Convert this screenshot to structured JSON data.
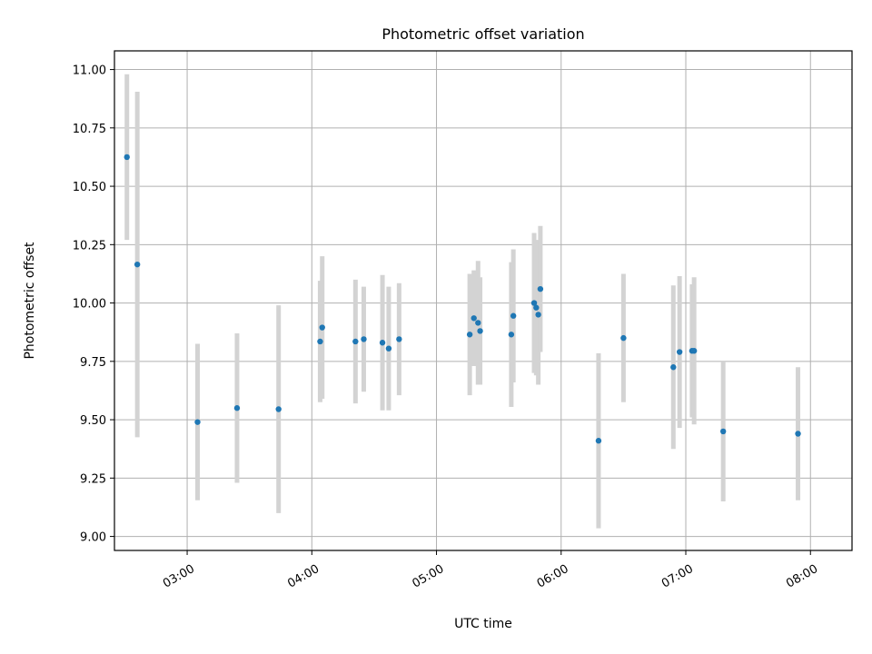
{
  "chart_data": {
    "type": "scatter",
    "title": "Photometric offset variation",
    "xlabel": "UTC time",
    "ylabel": "Photometric offset",
    "grid": true,
    "legend": "none",
    "colors": {
      "point": "#1f77b4",
      "errorbar": "#d3d3d3",
      "grid": "#b0b0b0"
    },
    "xlim": [
      "02:25",
      "08:20"
    ],
    "ylim": [
      8.94,
      11.08
    ],
    "x_ticks": [
      "03:00",
      "04:00",
      "05:00",
      "06:00",
      "07:00",
      "08:00"
    ],
    "y_ticks": [
      "9.00",
      "9.25",
      "9.50",
      "9.75",
      "10.00",
      "10.25",
      "10.50",
      "10.75",
      "11.00"
    ],
    "points": [
      {
        "x": "02:31",
        "y": 10.625,
        "err": 0.355
      },
      {
        "x": "02:36",
        "y": 10.165,
        "err": 0.74
      },
      {
        "x": "03:05",
        "y": 9.49,
        "err": 0.335
      },
      {
        "x": "03:24",
        "y": 9.55,
        "err": 0.32
      },
      {
        "x": "03:44",
        "y": 9.545,
        "err": 0.445
      },
      {
        "x": "04:04",
        "y": 9.835,
        "err": 0.26
      },
      {
        "x": "04:05",
        "y": 9.895,
        "err": 0.305
      },
      {
        "x": "04:21",
        "y": 9.835,
        "err": 0.265
      },
      {
        "x": "04:25",
        "y": 9.845,
        "err": 0.225
      },
      {
        "x": "04:34",
        "y": 9.83,
        "err": 0.29
      },
      {
        "x": "04:37",
        "y": 9.805,
        "err": 0.265
      },
      {
        "x": "04:42",
        "y": 9.845,
        "err": 0.24
      },
      {
        "x": "05:16",
        "y": 9.865,
        "err": 0.26
      },
      {
        "x": "05:18",
        "y": 9.935,
        "err": 0.205
      },
      {
        "x": "05:20",
        "y": 9.915,
        "err": 0.265
      },
      {
        "x": "05:21",
        "y": 9.88,
        "err": 0.23
      },
      {
        "x": "05:36",
        "y": 9.865,
        "err": 0.31
      },
      {
        "x": "05:37",
        "y": 9.945,
        "err": 0.285
      },
      {
        "x": "05:47",
        "y": 10.0,
        "err": 0.3
      },
      {
        "x": "05:48",
        "y": 9.98,
        "err": 0.29
      },
      {
        "x": "05:49",
        "y": 9.95,
        "err": 0.3
      },
      {
        "x": "05:50",
        "y": 10.06,
        "err": 0.27
      },
      {
        "x": "06:18",
        "y": 9.41,
        "err": 0.375
      },
      {
        "x": "06:30",
        "y": 9.85,
        "err": 0.275
      },
      {
        "x": "06:54",
        "y": 9.725,
        "err": 0.35
      },
      {
        "x": "06:57",
        "y": 9.79,
        "err": 0.325
      },
      {
        "x": "07:03",
        "y": 9.795,
        "err": 0.285
      },
      {
        "x": "07:04",
        "y": 9.795,
        "err": 0.315
      },
      {
        "x": "07:18",
        "y": 9.45,
        "err": 0.3
      },
      {
        "x": "07:54",
        "y": 9.44,
        "err": 0.285
      }
    ]
  }
}
